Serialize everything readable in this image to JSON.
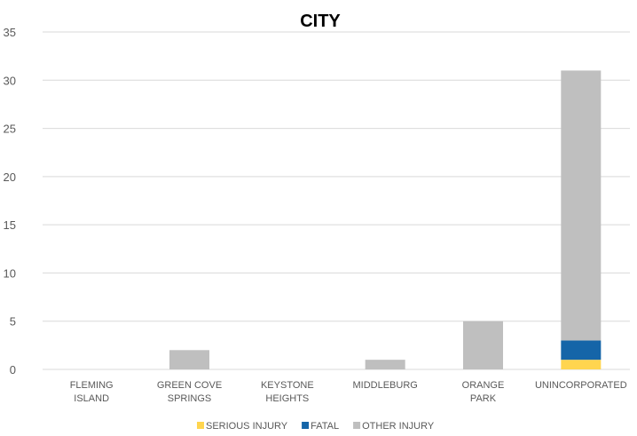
{
  "chart_data": {
    "type": "bar",
    "stacked": true,
    "title": "CITY",
    "xlabel": "",
    "ylabel": "",
    "ylim": [
      0,
      35
    ],
    "yticks": [
      "0",
      "5",
      "10",
      "15",
      "20",
      "25",
      "30",
      "35"
    ],
    "grid": "horizontal",
    "legend_position": "bottom",
    "categories": [
      [
        "FLEMING",
        "ISLAND"
      ],
      [
        "GREEN COVE",
        "SPRINGS"
      ],
      [
        "KEYSTONE",
        "HEIGHTS"
      ],
      [
        "MIDDLEBURG"
      ],
      [
        "ORANGE",
        "PARK"
      ],
      [
        "UNINCORPORATED"
      ]
    ],
    "series": [
      {
        "name": "SERIOUS INJURY",
        "color": "#FFD54F",
        "values": [
          0,
          0,
          0,
          0,
          0,
          1
        ]
      },
      {
        "name": "FATAL",
        "color": "#1565A8",
        "values": [
          0,
          0,
          0,
          0,
          0,
          2
        ]
      },
      {
        "name": "OTHER INJURY",
        "color": "#BFBFBF",
        "values": [
          0,
          2,
          0,
          1,
          5,
          28
        ]
      }
    ]
  }
}
